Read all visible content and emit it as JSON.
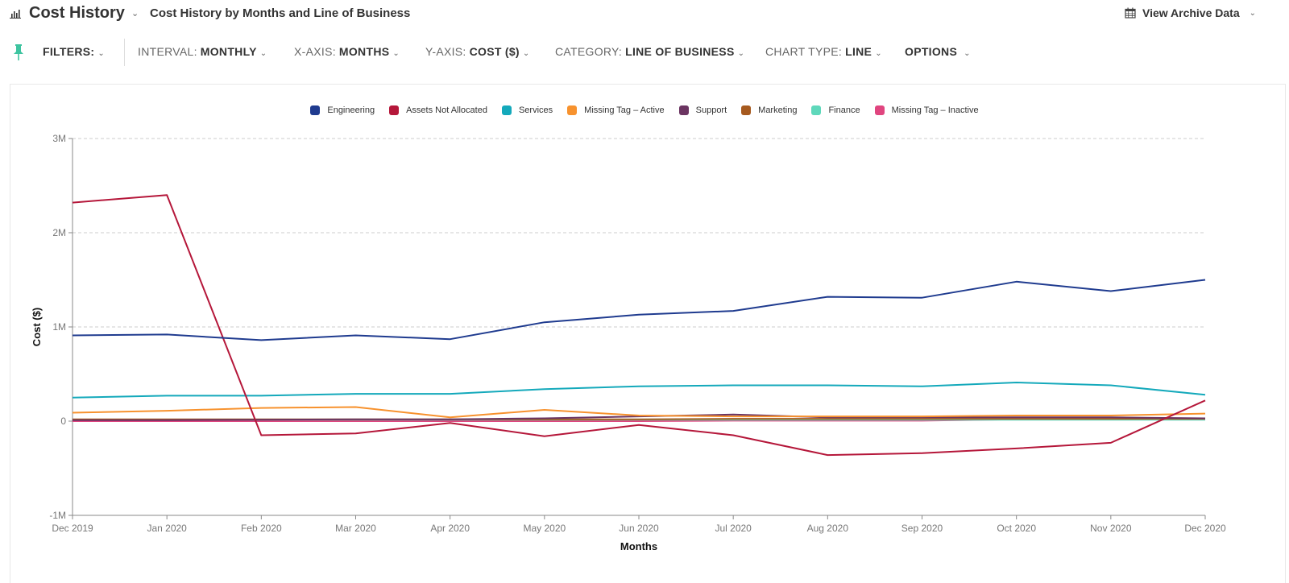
{
  "header": {
    "title": "Cost History",
    "subtitle": "Cost History by Months and Line of Business",
    "archive_label": "View Archive Data"
  },
  "toolbar": {
    "filters_label": "FILTERS:",
    "interval": {
      "label": "INTERVAL:",
      "value": "MONTHLY"
    },
    "xaxis": {
      "label": "X-AXIS:",
      "value": "MONTHS"
    },
    "yaxis": {
      "label": "Y-AXIS:",
      "value": "COST ($)"
    },
    "category": {
      "label": "CATEGORY:",
      "value": "LINE OF BUSINESS"
    },
    "chart_type": {
      "label": "CHART TYPE:",
      "value": "LINE"
    },
    "options_label": "OPTIONS"
  },
  "icons": {
    "title": "bar-chart-icon",
    "archive": "calendar-icon",
    "filters": "pin-icon",
    "dropdown": "chevron-down-icon"
  },
  "chart_data": {
    "type": "line",
    "title": "Cost History by Months and Line of Business",
    "xlabel": "Months",
    "ylabel": "Cost ($)",
    "ylim": [
      -1000000,
      3000000
    ],
    "yticks": [
      -1000000,
      0,
      1000000,
      2000000,
      3000000
    ],
    "ytick_labels": [
      "-1M",
      "0",
      "1M",
      "2M",
      "3M"
    ],
    "grid": "horizontal dashed",
    "legend_position": "top-center",
    "x": [
      "Dec 2019",
      "Jan 2020",
      "Feb 2020",
      "Mar 2020",
      "Apr 2020",
      "May 2020",
      "Jun 2020",
      "Jul 2020",
      "Aug 2020",
      "Sep 2020",
      "Oct 2020",
      "Nov 2020",
      "Dec 2020"
    ],
    "series": [
      {
        "name": "Engineering",
        "color": "#1f3b8f",
        "values": [
          910000,
          920000,
          860000,
          910000,
          870000,
          1050000,
          1130000,
          1170000,
          1320000,
          1310000,
          1480000,
          1380000,
          1500000
        ]
      },
      {
        "name": "Assets Not Allocated",
        "color": "#b5173a",
        "values": [
          2320000,
          2400000,
          -150000,
          -130000,
          -20000,
          -160000,
          -40000,
          -150000,
          -360000,
          -340000,
          -290000,
          -230000,
          220000
        ]
      },
      {
        "name": "Services",
        "color": "#14a9bb",
        "values": [
          250000,
          270000,
          270000,
          290000,
          290000,
          340000,
          370000,
          380000,
          380000,
          370000,
          410000,
          380000,
          280000
        ]
      },
      {
        "name": "Missing Tag – Active",
        "color": "#f7922e",
        "values": [
          90000,
          110000,
          140000,
          150000,
          40000,
          120000,
          60000,
          50000,
          50000,
          50000,
          60000,
          60000,
          80000
        ]
      },
      {
        "name": "Support",
        "color": "#6b3461",
        "values": [
          10000,
          10000,
          15000,
          20000,
          20000,
          30000,
          50000,
          70000,
          40000,
          40000,
          40000,
          40000,
          30000
        ]
      },
      {
        "name": "Marketing",
        "color": "#a65a1f",
        "values": [
          20000,
          20000,
          20000,
          20000,
          20000,
          20000,
          20000,
          25000,
          25000,
          25000,
          25000,
          25000,
          25000
        ]
      },
      {
        "name": "Finance",
        "color": "#5fd8bb",
        "values": [
          15000,
          15000,
          15000,
          15000,
          15000,
          15000,
          15000,
          15000,
          15000,
          15000,
          15000,
          15000,
          15000
        ]
      },
      {
        "name": "Missing Tag – Inactive",
        "color": "#e0457f",
        "values": [
          0,
          0,
          0,
          0,
          0,
          0,
          0,
          5000,
          5000,
          5000,
          20000,
          25000,
          30000
        ]
      }
    ]
  }
}
